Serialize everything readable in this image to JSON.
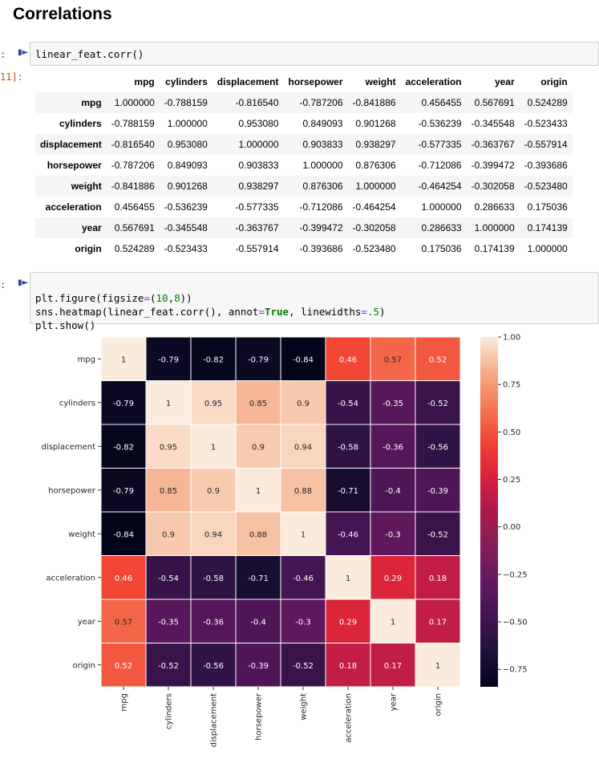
{
  "heading": "Correlations",
  "cell1": {
    "prompt_in": ":",
    "prompt_out": "11]:",
    "code": "linear_feat.corr()"
  },
  "cell2": {
    "prompt_in": ":",
    "code_lines": [
      [
        "plt.figure(figsize",
        "=",
        "(",
        "10",
        ",",
        "8",
        "))"
      ],
      [
        "sns.heatmap(linear_feat.corr(), annot",
        "=",
        "True",
        ", linewidths",
        "=",
        ".5",
        ")"
      ],
      [
        "plt.show()"
      ]
    ]
  },
  "dataframe": {
    "columns": [
      "mpg",
      "cylinders",
      "displacement",
      "horsepower",
      "weight",
      "acceleration",
      "year",
      "origin"
    ],
    "rows": [
      {
        "index": "mpg",
        "values": [
          "1.000000",
          "-0.788159",
          "-0.816540",
          "-0.787206",
          "-0.841886",
          "0.456455",
          "0.567691",
          "0.524289"
        ]
      },
      {
        "index": "cylinders",
        "values": [
          "-0.788159",
          "1.000000",
          "0.953080",
          "0.849093",
          "0.901268",
          "-0.536239",
          "-0.345548",
          "-0.523433"
        ]
      },
      {
        "index": "displacement",
        "values": [
          "-0.816540",
          "0.953080",
          "1.000000",
          "0.903833",
          "0.938297",
          "-0.577335",
          "-0.363767",
          "-0.557914"
        ]
      },
      {
        "index": "horsepower",
        "values": [
          "-0.787206",
          "0.849093",
          "0.903833",
          "1.000000",
          "0.876306",
          "-0.712086",
          "-0.399472",
          "-0.393686"
        ]
      },
      {
        "index": "weight",
        "values": [
          "-0.841886",
          "0.901268",
          "0.938297",
          "0.876306",
          "1.000000",
          "-0.464254",
          "-0.302058",
          "-0.523480"
        ]
      },
      {
        "index": "acceleration",
        "values": [
          "0.456455",
          "-0.536239",
          "-0.577335",
          "-0.712086",
          "-0.464254",
          "1.000000",
          "0.286633",
          "0.175036"
        ]
      },
      {
        "index": "year",
        "values": [
          "0.567691",
          "-0.345548",
          "-0.363767",
          "-0.399472",
          "-0.302058",
          "0.286633",
          "1.000000",
          "0.174139"
        ]
      },
      {
        "index": "origin",
        "values": [
          "0.524289",
          "-0.523433",
          "-0.557914",
          "-0.393686",
          "-0.523480",
          "0.175036",
          "0.174139",
          "1.000000"
        ]
      }
    ]
  },
  "chart_data": {
    "type": "heatmap",
    "labels": [
      "mpg",
      "cylinders",
      "displacement",
      "horsepower",
      "weight",
      "acceleration",
      "year",
      "origin"
    ],
    "annotations": [
      [
        "1",
        "-0.79",
        "-0.82",
        "-0.79",
        "-0.84",
        "0.46",
        "0.57",
        "0.52"
      ],
      [
        "-0.79",
        "1",
        "0.95",
        "0.85",
        "0.9",
        "-0.54",
        "-0.35",
        "-0.52"
      ],
      [
        "-0.82",
        "0.95",
        "1",
        "0.9",
        "0.94",
        "-0.58",
        "-0.36",
        "-0.56"
      ],
      [
        "-0.79",
        "0.85",
        "0.9",
        "1",
        "0.88",
        "-0.71",
        "-0.4",
        "-0.39"
      ],
      [
        "-0.84",
        "0.9",
        "0.94",
        "0.88",
        "1",
        "-0.46",
        "-0.3",
        "-0.52"
      ],
      [
        "0.46",
        "-0.54",
        "-0.58",
        "-0.71",
        "-0.46",
        "1",
        "0.29",
        "0.18"
      ],
      [
        "0.57",
        "-0.35",
        "-0.36",
        "-0.4",
        "-0.3",
        "0.29",
        "1",
        "0.17"
      ],
      [
        "0.52",
        "-0.52",
        "-0.56",
        "-0.39",
        "-0.52",
        "0.18",
        "0.17",
        "1"
      ]
    ],
    "values": [
      [
        1.0,
        -0.788159,
        -0.81654,
        -0.787206,
        -0.841886,
        0.456455,
        0.567691,
        0.524289
      ],
      [
        -0.788159,
        1.0,
        0.95308,
        0.849093,
        0.901268,
        -0.536239,
        -0.345548,
        -0.523433
      ],
      [
        -0.81654,
        0.95308,
        1.0,
        0.903833,
        0.938297,
        -0.577335,
        -0.363767,
        -0.557914
      ],
      [
        -0.787206,
        0.849093,
        0.903833,
        1.0,
        0.876306,
        -0.712086,
        -0.399472,
        -0.393686
      ],
      [
        -0.841886,
        0.901268,
        0.938297,
        0.876306,
        1.0,
        -0.464254,
        -0.302058,
        -0.52348
      ],
      [
        0.456455,
        -0.536239,
        -0.577335,
        -0.712086,
        -0.464254,
        1.0,
        0.286633,
        0.175036
      ],
      [
        0.567691,
        -0.345548,
        -0.363767,
        -0.399472,
        -0.302058,
        0.286633,
        1.0,
        0.174139
      ],
      [
        0.524289,
        -0.523433,
        -0.557914,
        -0.393686,
        -0.52348,
        0.175036,
        0.174139,
        1.0
      ]
    ],
    "colorbar": {
      "min": -0.841886,
      "max": 1.0,
      "ticks": [
        1.0,
        0.75,
        0.5,
        0.25,
        0.0,
        -0.25,
        -0.5,
        -0.75
      ],
      "tick_labels": [
        "1.00",
        "0.75",
        "0.50",
        "0.25",
        "0.00",
        "−0.25",
        "−0.50",
        "−0.75"
      ]
    },
    "colormap": "rocket",
    "linecolor": "#ffffff"
  }
}
